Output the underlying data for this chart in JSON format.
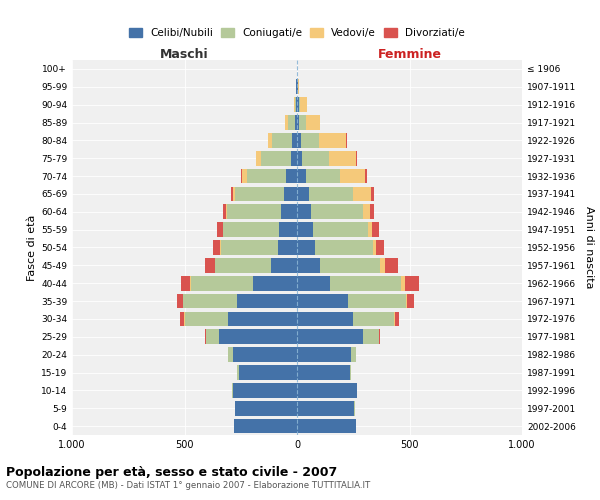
{
  "age_groups": [
    "0-4",
    "5-9",
    "10-14",
    "15-19",
    "20-24",
    "25-29",
    "30-34",
    "35-39",
    "40-44",
    "45-49",
    "50-54",
    "55-59",
    "60-64",
    "65-69",
    "70-74",
    "75-79",
    "80-84",
    "85-89",
    "90-94",
    "95-99",
    "100+"
  ],
  "birth_years": [
    "2002-2006",
    "1997-2001",
    "1992-1996",
    "1987-1991",
    "1982-1986",
    "1977-1981",
    "1972-1976",
    "1967-1971",
    "1962-1966",
    "1957-1961",
    "1952-1956",
    "1947-1951",
    "1942-1946",
    "1937-1941",
    "1932-1936",
    "1927-1931",
    "1922-1926",
    "1917-1921",
    "1912-1916",
    "1907-1911",
    "≤ 1906"
  ],
  "maschi": {
    "celibi": [
      280,
      275,
      285,
      260,
      285,
      345,
      305,
      265,
      195,
      115,
      85,
      78,
      72,
      60,
      48,
      28,
      22,
      10,
      4,
      3,
      2
    ],
    "coniugati": [
      1,
      1,
      2,
      5,
      20,
      60,
      195,
      240,
      278,
      248,
      255,
      250,
      238,
      215,
      175,
      130,
      90,
      30,
      5,
      0,
      0
    ],
    "vedovi": [
      0,
      0,
      0,
      0,
      0,
      0,
      1,
      2,
      2,
      2,
      2,
      3,
      5,
      10,
      20,
      25,
      15,
      15,
      5,
      0,
      0
    ],
    "divorziati": [
      0,
      0,
      0,
      1,
      3,
      5,
      20,
      25,
      40,
      45,
      30,
      25,
      15,
      10,
      5,
      0,
      0,
      0,
      0,
      0,
      0
    ]
  },
  "femmine": {
    "nubili": [
      260,
      255,
      265,
      235,
      240,
      295,
      248,
      228,
      148,
      102,
      78,
      72,
      62,
      52,
      38,
      22,
      18,
      10,
      8,
      3,
      2
    ],
    "coniugate": [
      1,
      1,
      2,
      5,
      20,
      68,
      185,
      255,
      312,
      268,
      260,
      242,
      232,
      196,
      155,
      120,
      80,
      30,
      5,
      0,
      0
    ],
    "vedove": [
      0,
      0,
      0,
      0,
      0,
      0,
      2,
      5,
      20,
      20,
      15,
      20,
      30,
      80,
      110,
      120,
      120,
      60,
      30,
      5,
      0
    ],
    "divorziate": [
      0,
      0,
      0,
      1,
      3,
      5,
      20,
      30,
      60,
      60,
      35,
      30,
      20,
      15,
      10,
      5,
      5,
      0,
      0,
      0,
      0
    ]
  },
  "colors": {
    "celibi_nubili": "#4472a8",
    "coniugati": "#b5c99a",
    "vedovi": "#f5c97a",
    "divorziati": "#d9534f"
  },
  "title": "Popolazione per età, sesso e stato civile - 2007",
  "subtitle": "COMUNE DI ARCORE (MB) - Dati ISTAT 1° gennaio 2007 - Elaborazione TUTTITALIA.IT",
  "ylabel_left": "Fasce di età",
  "ylabel_right": "Anni di nascita",
  "xlabel_left": "Maschi",
  "xlabel_right": "Femmine",
  "legend_labels": [
    "Celibi/Nubili",
    "Coniugati/e",
    "Vedovi/e",
    "Divorziati/e"
  ],
  "xlim": 1000,
  "background_color": "#ffffff",
  "bar_height": 0.82
}
